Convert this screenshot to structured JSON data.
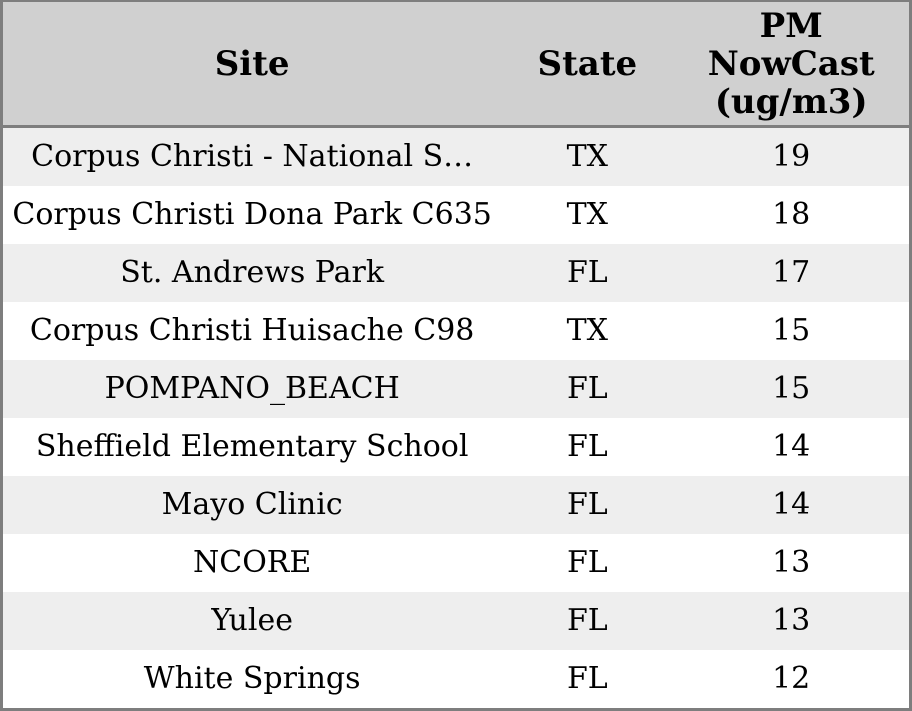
{
  "table": {
    "columns": [
      {
        "label": "Site"
      },
      {
        "label": "State"
      },
      {
        "label": "PM NowCast (ug/m3)"
      }
    ],
    "rows": [
      {
        "site": "Corpus Christi - National S…",
        "state": "TX",
        "pm_nowcast": "19"
      },
      {
        "site": "Corpus Christi Dona Park C635",
        "state": "TX",
        "pm_nowcast": "18"
      },
      {
        "site": "St. Andrews Park",
        "state": "FL",
        "pm_nowcast": "17"
      },
      {
        "site": "Corpus Christi Huisache C98",
        "state": "TX",
        "pm_nowcast": "15"
      },
      {
        "site": "POMPANO_BEACH",
        "state": "FL",
        "pm_nowcast": "15"
      },
      {
        "site": "Sheffield Elementary School",
        "state": "FL",
        "pm_nowcast": "14"
      },
      {
        "site": "Mayo Clinic",
        "state": "FL",
        "pm_nowcast": "14"
      },
      {
        "site": "NCORE",
        "state": "FL",
        "pm_nowcast": "13"
      },
      {
        "site": "Yulee",
        "state": "FL",
        "pm_nowcast": "13"
      },
      {
        "site": "White Springs",
        "state": "FL",
        "pm_nowcast": "12"
      }
    ]
  },
  "colors": {
    "header_background": "#d0d0d0",
    "outer_border": "#7e7e7e",
    "row_odd_background": "#eeeeee",
    "row_even_background": "#ffffff",
    "text": "#000000"
  },
  "chart_data": {
    "type": "table",
    "title": "",
    "columns": [
      "Site",
      "State",
      "PM NowCast (ug/m3)"
    ],
    "rows": [
      [
        "Corpus Christi - National S…",
        "TX",
        19
      ],
      [
        "Corpus Christi Dona Park C635",
        "TX",
        18
      ],
      [
        "St. Andrews Park",
        "FL",
        17
      ],
      [
        "Corpus Christi Huisache C98",
        "TX",
        15
      ],
      [
        "POMPANO_BEACH",
        "FL",
        15
      ],
      [
        "Sheffield Elementary School",
        "FL",
        14
      ],
      [
        "Mayo Clinic",
        "FL",
        14
      ],
      [
        "NCORE",
        "FL",
        13
      ],
      [
        "Yulee",
        "FL",
        13
      ],
      [
        "White Springs",
        "FL",
        12
      ]
    ]
  }
}
